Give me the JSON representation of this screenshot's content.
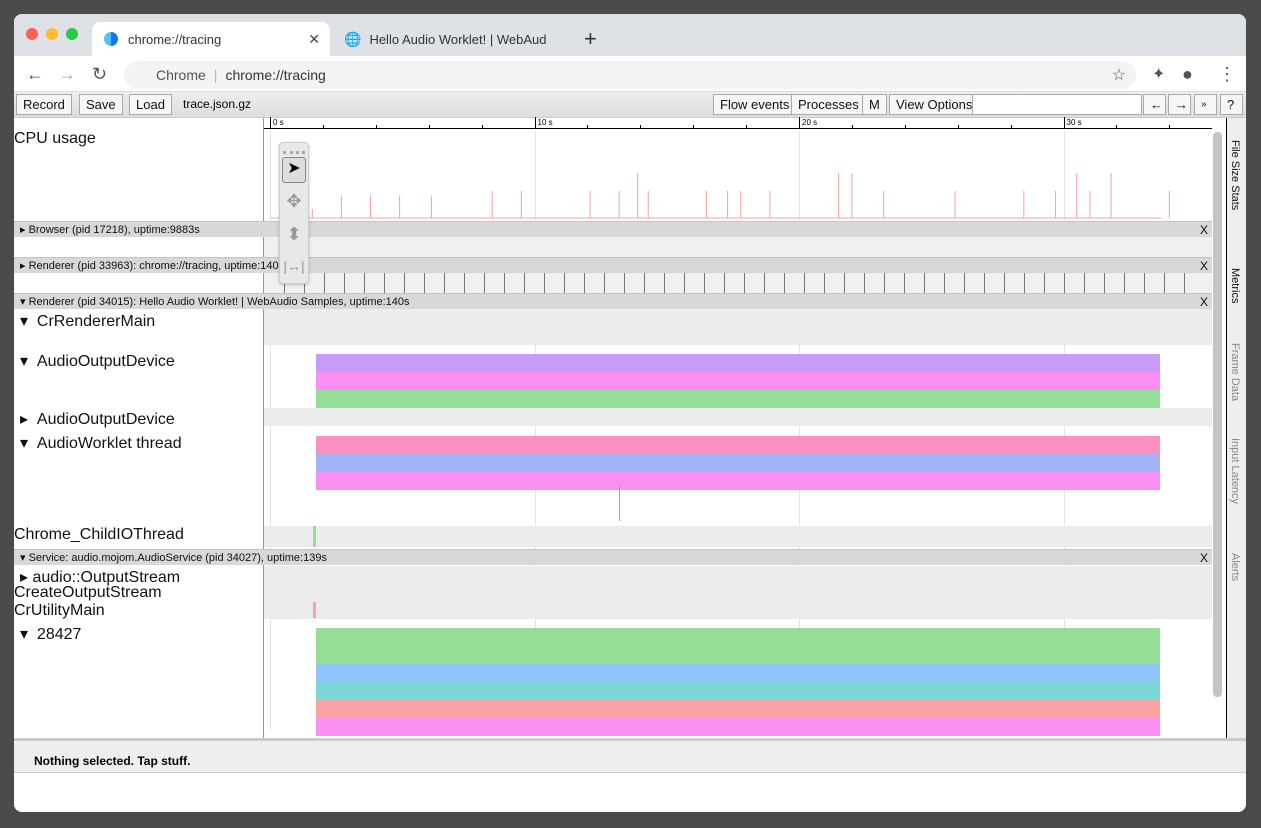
{
  "browser": {
    "tabs": [
      {
        "title": "chrome://tracing",
        "active": true
      },
      {
        "title": "Hello Audio Worklet! | WebAud",
        "active": false
      }
    ],
    "new_tab": "+",
    "omnibox_site": "Chrome",
    "omnibox_url": "chrome://tracing"
  },
  "toolbar": {
    "record": "Record",
    "save": "Save",
    "load": "Load",
    "filename": "trace.json.gz",
    "flow_events": "Flow events",
    "processes": "Processes",
    "m": "M",
    "view_options": "View Options",
    "search_value": "",
    "prev": "←",
    "next": "→",
    "more": "»",
    "help": "?"
  },
  "ruler": {
    "ticks": [
      {
        "label": "0 s",
        "t": 0
      },
      {
        "label": "10 s",
        "t": 10
      },
      {
        "label": "20 s",
        "t": 20
      },
      {
        "label": "30 s",
        "t": 30
      }
    ]
  },
  "cpu": {
    "label": "CPU usage",
    "color": "#f5a0a0",
    "spikes": [
      [
        1.6,
        0.1
      ],
      [
        2.7,
        0.25
      ],
      [
        3.8,
        0.25
      ],
      [
        4.9,
        0.25
      ],
      [
        6.1,
        0.25
      ],
      [
        8.4,
        0.3
      ],
      [
        9.5,
        0.3
      ],
      [
        12.1,
        0.3
      ],
      [
        13.2,
        0.3
      ],
      [
        13.9,
        0.5
      ],
      [
        14.3,
        0.3
      ],
      [
        16.5,
        0.3
      ],
      [
        17.3,
        0.3
      ],
      [
        17.8,
        0.3
      ],
      [
        18.9,
        0.3
      ],
      [
        21.5,
        0.5
      ],
      [
        22.0,
        0.5
      ],
      [
        23.2,
        0.3
      ],
      [
        25.9,
        0.3
      ],
      [
        28.5,
        0.3
      ],
      [
        29.7,
        0.3
      ],
      [
        30.5,
        0.5
      ],
      [
        31.8,
        0.5
      ],
      [
        31.0,
        0.3
      ],
      [
        34.0,
        0.3
      ]
    ]
  },
  "processes": [
    {
      "title": "Browser (pid 17218), uptime:9883s",
      "expanded": false,
      "close": "X"
    },
    {
      "title": "Renderer (pid 33963): chrome://tracing, uptime:140s",
      "expanded": false,
      "close": "X"
    },
    {
      "title": "Renderer (pid 34015): Hello Audio Worklet! | WebAudio Samples, uptime:140s",
      "expanded": true,
      "close": "X"
    },
    {
      "title": "Service: audio.mojom.AudioService (pid 34027), uptime:139s",
      "expanded": true,
      "close": "X"
    }
  ],
  "threads": {
    "cr_renderer_main": "CrRendererMain",
    "audio_output_device": "AudioOutputDevice",
    "audio_output_device_2": "AudioOutputDevice",
    "audio_worklet": "AudioWorklet thread",
    "child_io": "Chrome_ChildIOThread",
    "output_stream": "audio::OutputStream",
    "create_output_stream": "CreateOutputStream",
    "cr_utility_main": "CrUtilityMain",
    "tid_28427": "28427"
  },
  "slices": {
    "start": 1.75,
    "end": 33.65,
    "audio_output_device": [
      "#c89af9",
      "#f98ff0",
      "#95de95"
    ],
    "audio_worklet": [
      "#fc90c0",
      "#a3b3f7",
      "#f98ff0"
    ],
    "tid_28427": [
      "#95de95",
      "#8fc3fb",
      "#7bd7d5",
      "#f9a3a3",
      "#f98ff0"
    ]
  },
  "side_tabs": [
    "File Size Stats",
    "Metrics",
    "Frame Data",
    "Input Latency",
    "Alerts"
  ],
  "tool_palette": [
    "selection-tool",
    "pan-tool",
    "zoom-tool",
    "timing-tool"
  ],
  "status": "Nothing selected. Tap stuff."
}
